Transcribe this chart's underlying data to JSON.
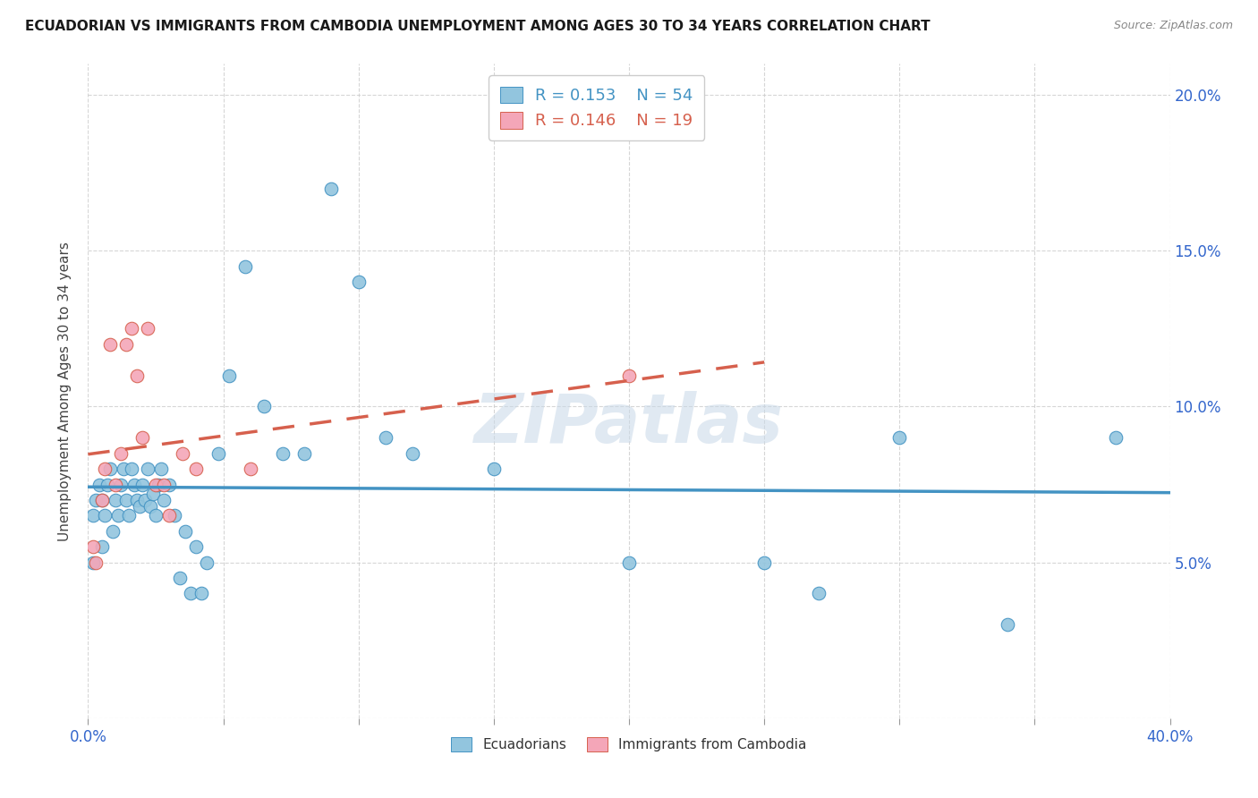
{
  "title": "ECUADORIAN VS IMMIGRANTS FROM CAMBODIA UNEMPLOYMENT AMONG AGES 30 TO 34 YEARS CORRELATION CHART",
  "source": "Source: ZipAtlas.com",
  "ylabel": "Unemployment Among Ages 30 to 34 years",
  "xlim": [
    0.0,
    0.4
  ],
  "ylim": [
    0.0,
    0.21
  ],
  "x_ticks": [
    0.0,
    0.05,
    0.1,
    0.15,
    0.2,
    0.25,
    0.3,
    0.35,
    0.4
  ],
  "y_ticks": [
    0.0,
    0.05,
    0.1,
    0.15,
    0.2
  ],
  "legend_blue": {
    "R": 0.153,
    "N": 54
  },
  "legend_pink": {
    "R": 0.146,
    "N": 19
  },
  "blue_color": "#92c5de",
  "pink_color": "#f4a6b8",
  "blue_line_color": "#4393c3",
  "pink_line_color": "#d6604d",
  "watermark": "ZIPatlas",
  "ecuadorians_x": [
    0.002,
    0.002,
    0.003,
    0.004,
    0.005,
    0.005,
    0.006,
    0.007,
    0.008,
    0.009,
    0.01,
    0.011,
    0.012,
    0.013,
    0.014,
    0.015,
    0.016,
    0.017,
    0.018,
    0.019,
    0.02,
    0.021,
    0.022,
    0.023,
    0.024,
    0.025,
    0.026,
    0.027,
    0.028,
    0.03,
    0.032,
    0.034,
    0.036,
    0.038,
    0.04,
    0.042,
    0.044,
    0.048,
    0.052,
    0.058,
    0.065,
    0.072,
    0.08,
    0.09,
    0.1,
    0.11,
    0.12,
    0.15,
    0.2,
    0.25,
    0.27,
    0.3,
    0.34,
    0.38
  ],
  "ecuadorians_y": [
    0.05,
    0.065,
    0.07,
    0.075,
    0.055,
    0.07,
    0.065,
    0.075,
    0.08,
    0.06,
    0.07,
    0.065,
    0.075,
    0.08,
    0.07,
    0.065,
    0.08,
    0.075,
    0.07,
    0.068,
    0.075,
    0.07,
    0.08,
    0.068,
    0.072,
    0.065,
    0.075,
    0.08,
    0.07,
    0.075,
    0.065,
    0.045,
    0.06,
    0.04,
    0.055,
    0.04,
    0.05,
    0.085,
    0.11,
    0.145,
    0.1,
    0.085,
    0.085,
    0.17,
    0.14,
    0.09,
    0.085,
    0.08,
    0.05,
    0.05,
    0.04,
    0.09,
    0.03,
    0.09
  ],
  "cambodia_x": [
    0.002,
    0.003,
    0.005,
    0.006,
    0.008,
    0.01,
    0.012,
    0.014,
    0.016,
    0.018,
    0.02,
    0.022,
    0.025,
    0.028,
    0.03,
    0.035,
    0.04,
    0.06,
    0.2
  ],
  "cambodia_y": [
    0.055,
    0.05,
    0.07,
    0.08,
    0.12,
    0.075,
    0.085,
    0.12,
    0.125,
    0.11,
    0.09,
    0.125,
    0.075,
    0.075,
    0.065,
    0.085,
    0.08,
    0.08,
    0.11
  ]
}
